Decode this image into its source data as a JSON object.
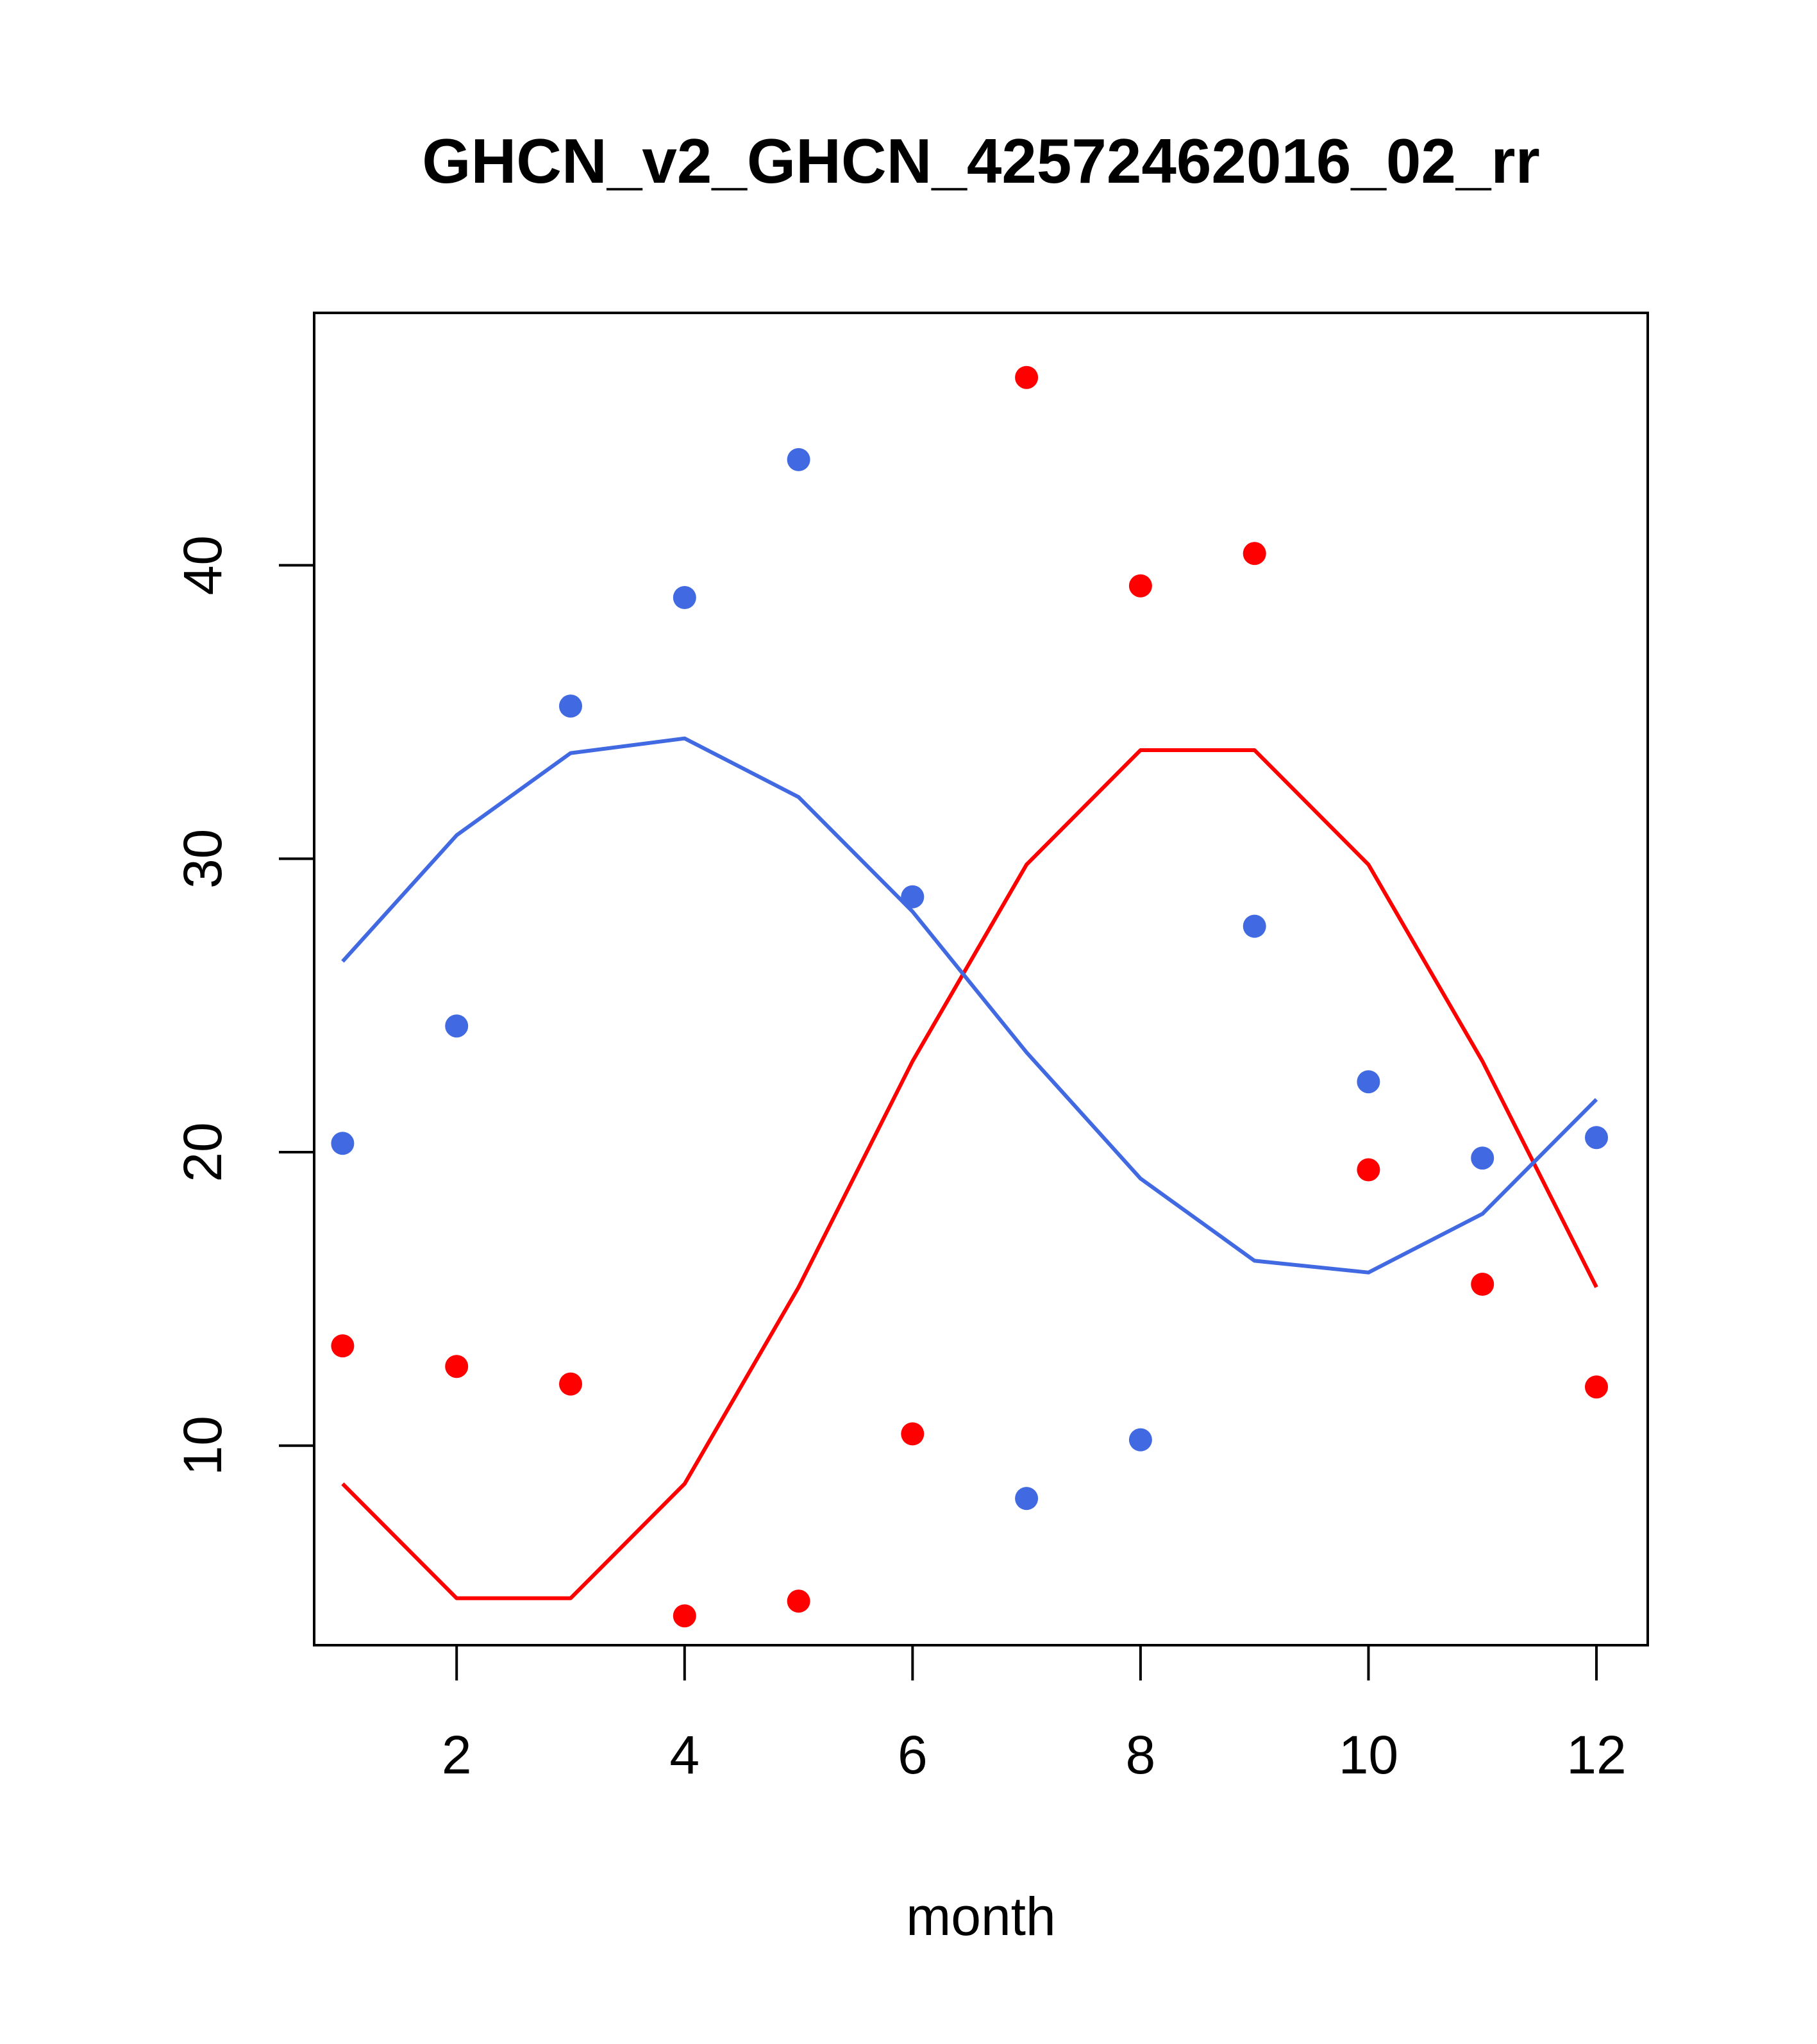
{
  "chart_data": {
    "type": "line",
    "title": "GHCN_v2_GHCN_42572462016_02_rr",
    "xlabel": "month",
    "ylabel": "",
    "xlim": [
      0.75,
      12.45
    ],
    "ylim": [
      3.2,
      48.6
    ],
    "xticks": [
      2,
      4,
      6,
      8,
      10,
      12
    ],
    "yticks": [
      10,
      20,
      30,
      40
    ],
    "grid": false,
    "legend": "none",
    "series": [
      {
        "color": "#ff0000",
        "points": {
          "x": [
            1,
            2,
            3,
            4,
            5,
            6,
            7,
            8,
            9,
            10,
            11,
            12
          ],
          "y": [
            13.4,
            12.7,
            12.1,
            4.2,
            4.7,
            10.4,
            46.4,
            39.3,
            40.4,
            19.4,
            15.5,
            12.0
          ]
        },
        "fit": {
          "x": [
            1,
            2,
            3,
            4,
            5,
            6,
            7,
            8,
            9,
            10,
            11,
            12
          ],
          "y": [
            8.7,
            4.8,
            4.8,
            8.7,
            15.4,
            23.1,
            29.8,
            33.7,
            33.7,
            29.8,
            23.1,
            15.4
          ]
        }
      },
      {
        "color": "#4169e1",
        "points": {
          "x": [
            1,
            2,
            3,
            4,
            5,
            6,
            7,
            8,
            9,
            10,
            11,
            12
          ],
          "y": [
            20.3,
            24.3,
            35.2,
            38.9,
            43.6,
            28.7,
            8.2,
            10.2,
            27.7,
            22.4,
            19.8,
            20.5
          ]
        },
        "fit": {
          "x": [
            1,
            2,
            3,
            4,
            5,
            6,
            7,
            8,
            9,
            10,
            11,
            12
          ],
          "y": [
            26.5,
            30.8,
            33.6,
            34.1,
            32.1,
            28.2,
            23.4,
            19.1,
            16.3,
            15.9,
            17.9,
            21.8
          ]
        }
      }
    ]
  }
}
